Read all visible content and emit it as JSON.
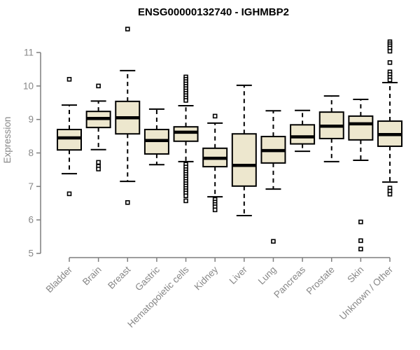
{
  "chart_data": {
    "type": "boxplot",
    "title": "ENSG00000132740 - IGHMBP2",
    "xlabel": "",
    "ylabel": "Expression",
    "ylim": [
      5,
      11
    ],
    "yticks": [
      5,
      6,
      7,
      8,
      9,
      10,
      11
    ],
    "grid": false,
    "legend": "none",
    "categories": [
      "Bladder",
      "Brain",
      "Breast",
      "Gastric",
      "Hematopoietic cells",
      "Kidney",
      "Liver",
      "Lung",
      "Pancreas",
      "Prostate",
      "Skin",
      "Unknown / Other"
    ],
    "series": [
      {
        "name": "Bladder",
        "low": 7.38,
        "q1": 8.09,
        "median": 8.45,
        "q3": 8.7,
        "high": 9.43,
        "outliers": [
          10.2,
          6.78
        ]
      },
      {
        "name": "Brain",
        "low": 8.1,
        "q1": 8.76,
        "median": 9.03,
        "q3": 9.24,
        "high": 9.55,
        "outliers": [
          10.0,
          7.72,
          7.6,
          7.52
        ]
      },
      {
        "name": "Breast",
        "low": 7.15,
        "q1": 8.57,
        "median": 9.05,
        "q3": 9.54,
        "high": 10.46,
        "outliers": [
          11.7,
          6.52
        ]
      },
      {
        "name": "Gastric",
        "low": 7.65,
        "q1": 7.97,
        "median": 8.37,
        "q3": 8.7,
        "high": 9.31,
        "outliers": []
      },
      {
        "name": "Hematopoietic cells",
        "low": 7.74,
        "q1": 8.35,
        "median": 8.62,
        "q3": 8.78,
        "high": 9.41,
        "outliers": [
          10.27,
          10.2,
          10.13,
          10.06,
          9.99,
          9.92,
          9.85,
          9.78,
          9.71,
          9.64,
          9.57,
          7.66,
          7.58,
          7.5,
          7.43,
          7.36,
          7.29,
          7.22,
          7.15,
          7.08,
          7.01,
          6.94,
          6.87,
          6.8,
          6.72,
          6.57
        ]
      },
      {
        "name": "Kidney",
        "low": 6.69,
        "q1": 7.59,
        "median": 7.84,
        "q3": 8.14,
        "high": 8.89,
        "outliers": [
          9.1,
          6.61,
          6.53,
          6.46,
          6.39,
          6.3
        ]
      },
      {
        "name": "Liver",
        "low": 6.13,
        "q1": 7.01,
        "median": 7.63,
        "q3": 8.57,
        "high": 10.02,
        "outliers": []
      },
      {
        "name": "Lung",
        "low": 6.92,
        "q1": 7.7,
        "median": 8.07,
        "q3": 8.49,
        "high": 9.26,
        "outliers": [
          5.36
        ]
      },
      {
        "name": "Pancreas",
        "low": 8.05,
        "q1": 8.27,
        "median": 8.48,
        "q3": 8.84,
        "high": 9.27,
        "outliers": []
      },
      {
        "name": "Prostate",
        "low": 7.74,
        "q1": 8.43,
        "median": 8.8,
        "q3": 9.22,
        "high": 9.7,
        "outliers": []
      },
      {
        "name": "Skin",
        "low": 7.78,
        "q1": 8.39,
        "median": 8.87,
        "q3": 9.1,
        "high": 9.6,
        "outliers": [
          5.94,
          5.38,
          5.13
        ]
      },
      {
        "name": "Unknown / Other",
        "low": 7.13,
        "q1": 8.2,
        "median": 8.55,
        "q3": 8.95,
        "high": 10.1,
        "outliers": [
          11.32,
          11.26,
          11.2,
          11.13,
          11.04,
          10.7,
          10.42,
          10.34,
          10.26,
          10.18,
          6.95,
          6.86,
          6.77
        ]
      }
    ]
  },
  "colors": {
    "box_fill": "#EDE7CE",
    "box_stroke": "#000000",
    "median": "#000000",
    "whisker": "#000000",
    "outlier_stroke": "#000000",
    "outlier_fill": "#ffffff",
    "axis": "#7f7f7f",
    "text": "#878787",
    "title": "#000000",
    "background": "#ffffff"
  }
}
